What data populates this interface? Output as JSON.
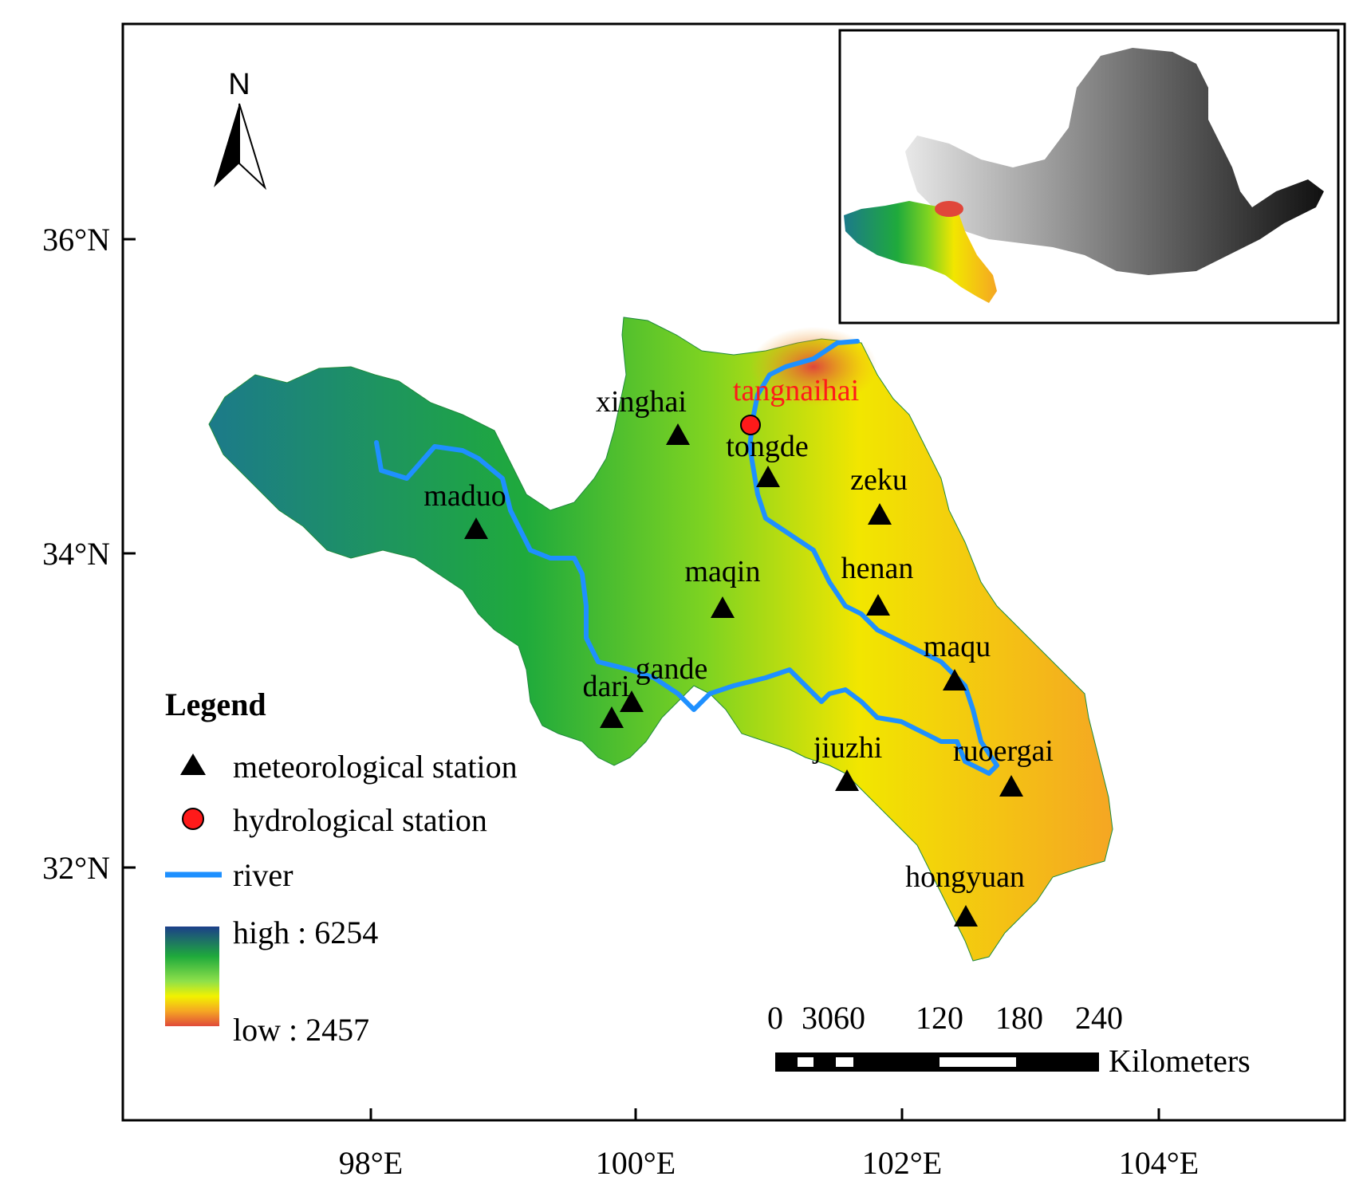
{
  "frame": {
    "lon_ticks": [
      "98°E",
      "100°E",
      "102°E",
      "104°E"
    ],
    "lat_ticks": [
      "36°N",
      "34°N",
      "32°N"
    ]
  },
  "north_arrow": {
    "label": "N",
    "icon": "north-arrow-icon"
  },
  "stations": [
    {
      "id": "xinghai",
      "label": "xinghai"
    },
    {
      "id": "tongde",
      "label": "tongde"
    },
    {
      "id": "zeku",
      "label": "zeku"
    },
    {
      "id": "maduo",
      "label": "maduo"
    },
    {
      "id": "maqin",
      "label": "maqin"
    },
    {
      "id": "henan",
      "label": "henan"
    },
    {
      "id": "maqu",
      "label": "maqu"
    },
    {
      "id": "gande",
      "label": "gande"
    },
    {
      "id": "dari",
      "label": "dari"
    },
    {
      "id": "jiuzhi",
      "label": "jiuzhi"
    },
    {
      "id": "ruoergai",
      "label": "ruoergai"
    },
    {
      "id": "hongyuan",
      "label": "hongyuan"
    }
  ],
  "hydrological_station": {
    "label": "tangnaihai",
    "color": "#ff1a1a"
  },
  "legend": {
    "title": "Legend",
    "meteorological": "meteorological station",
    "hydrological": "hydrological station",
    "river": "river",
    "high": "high : 6254",
    "low": "low : 2457",
    "river_color": "#1e90ff"
  },
  "scale_bar": {
    "ticks": [
      "0",
      "3060",
      "120",
      "180",
      "240"
    ],
    "unit": "Kilometers"
  },
  "colors": {
    "dem_high": "#1c4a8a",
    "dem_mid": "#1faa3c",
    "dem_low_yellow": "#f2e600",
    "dem_lowest": "#e0463a"
  }
}
